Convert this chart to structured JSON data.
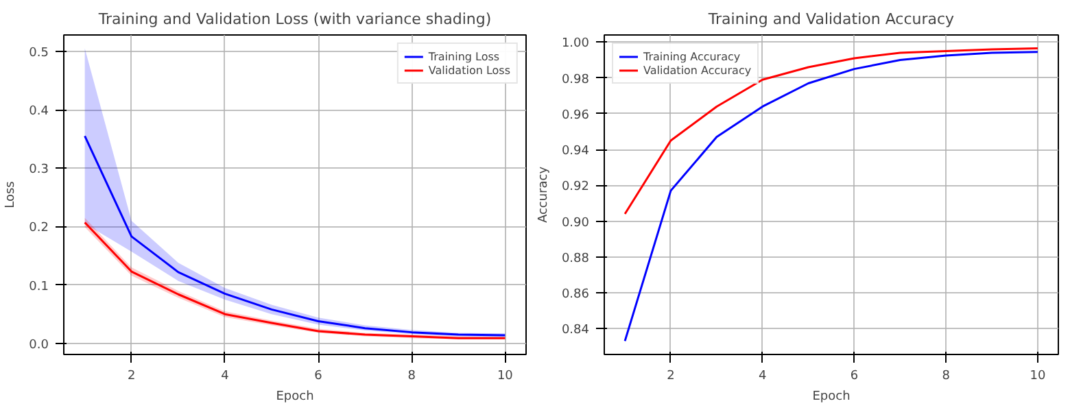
{
  "chart_data": [
    {
      "type": "line",
      "title": "Training and Validation Loss (with variance shading)",
      "xlabel": "Epoch",
      "ylabel": "Loss",
      "x": [
        1,
        2,
        3,
        4,
        5,
        6,
        7,
        8,
        9,
        10
      ],
      "xlim": [
        0.55,
        10.45
      ],
      "xticks": [
        2,
        4,
        6,
        8,
        10
      ],
      "ylim": [
        -0.019,
        0.528
      ],
      "yticks": [
        {
          "value": 0.0,
          "label": "0.0"
        },
        {
          "value": 0.1,
          "label": "0.1"
        },
        {
          "value": 0.2,
          "label": "0.2"
        },
        {
          "value": 0.3,
          "label": "0.3"
        },
        {
          "value": 0.4,
          "label": "0.4"
        },
        {
          "value": 0.5,
          "label": "0.5"
        }
      ],
      "grid": true,
      "legend": "top right",
      "series": [
        {
          "name": "Training Loss",
          "color": "#0000ff",
          "values": [
            0.355,
            0.183,
            0.122,
            0.085,
            0.058,
            0.038,
            0.026,
            0.019,
            0.015,
            0.014
          ],
          "lower": [
            0.205,
            0.157,
            0.107,
            0.075,
            0.05,
            0.032,
            0.022,
            0.016,
            0.012,
            0.011
          ],
          "upper": [
            0.505,
            0.21,
            0.138,
            0.095,
            0.066,
            0.044,
            0.031,
            0.023,
            0.018,
            0.017
          ]
        },
        {
          "name": "Validation Loss",
          "color": "#ff0000",
          "values": [
            0.207,
            0.123,
            0.084,
            0.05,
            0.035,
            0.021,
            0.015,
            0.012,
            0.009,
            0.009
          ],
          "lower": [
            0.199,
            0.116,
            0.078,
            0.045,
            0.031,
            0.018,
            0.012,
            0.009,
            0.007,
            0.007
          ],
          "upper": [
            0.215,
            0.13,
            0.09,
            0.055,
            0.039,
            0.025,
            0.018,
            0.015,
            0.012,
            0.011
          ]
        }
      ]
    },
    {
      "type": "line",
      "title": "Training and Validation Accuracy",
      "xlabel": "Epoch",
      "ylabel": "Accuracy",
      "x": [
        1,
        2,
        3,
        4,
        5,
        6,
        7,
        8,
        9,
        10
      ],
      "xlim": [
        0.55,
        10.45
      ],
      "xticks": [
        2,
        4,
        6,
        8,
        10
      ],
      "ylim": [
        0.8255,
        1.004
      ],
      "yticks": [
        {
          "value": 0.84,
          "label": "0.84"
        },
        {
          "value": 0.86,
          "label": "0.86"
        },
        {
          "value": 0.88,
          "label": "0.88"
        },
        {
          "value": 0.9,
          "label": "0.90"
        },
        {
          "value": 0.92,
          "label": "0.92"
        },
        {
          "value": 0.94,
          "label": "0.94"
        },
        {
          "value": 0.96,
          "label": "0.96"
        },
        {
          "value": 0.98,
          "label": "0.98"
        },
        {
          "value": 1.0,
          "label": "1.00"
        }
      ],
      "grid": true,
      "legend": "top left",
      "series": [
        {
          "name": "Training Accuracy",
          "color": "#0000ff",
          "values": [
            0.833,
            0.917,
            0.947,
            0.964,
            0.977,
            0.985,
            0.99,
            0.9925,
            0.994,
            0.9945
          ]
        },
        {
          "name": "Validation Accuracy",
          "color": "#ff0000",
          "values": [
            0.904,
            0.945,
            0.964,
            0.979,
            0.986,
            0.991,
            0.994,
            0.995,
            0.996,
            0.9965
          ]
        }
      ]
    }
  ]
}
